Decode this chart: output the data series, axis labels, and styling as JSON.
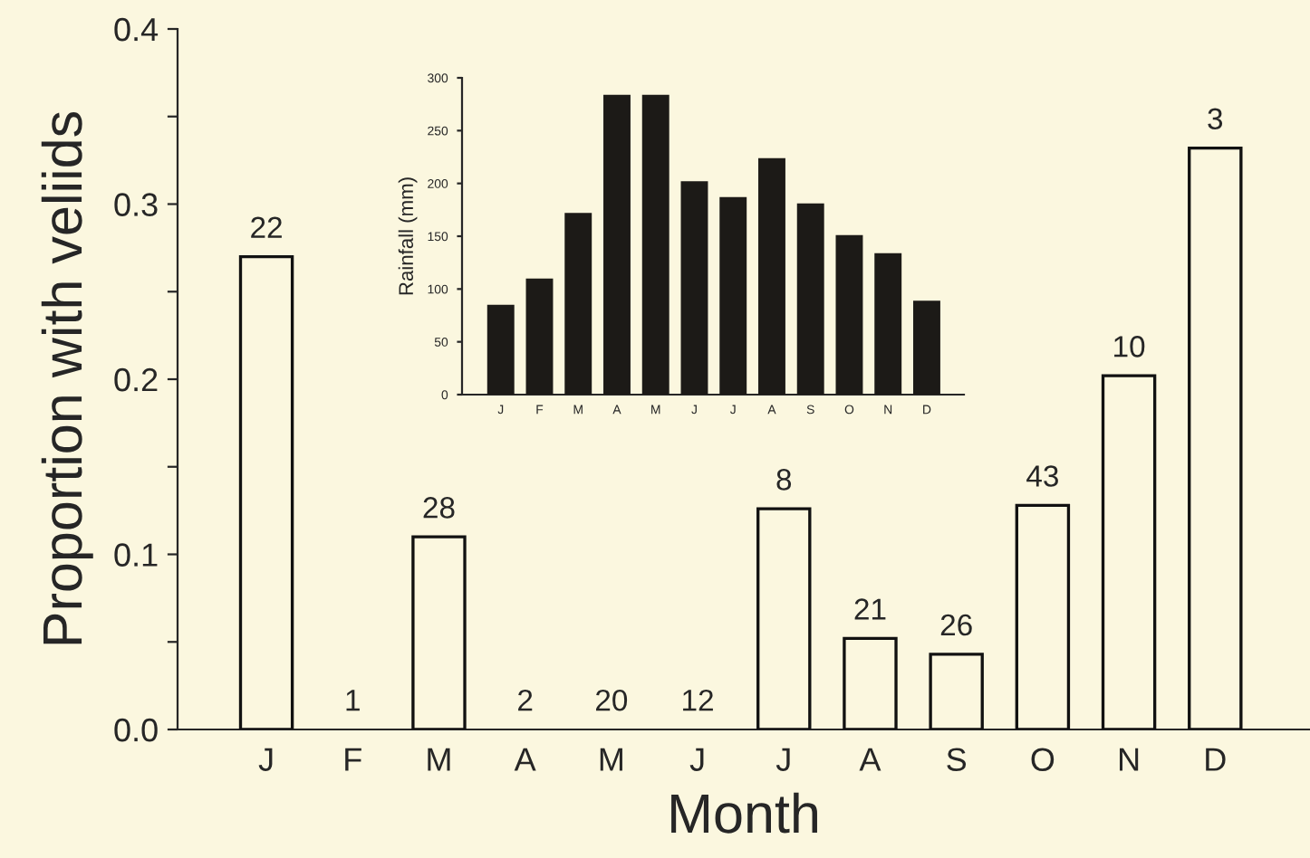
{
  "chart_data": [
    {
      "type": "bar",
      "xlabel": "Month",
      "ylabel": "Proportion with veliids",
      "categories": [
        "J",
        "F",
        "M",
        "A",
        "M",
        "J",
        "J",
        "A",
        "S",
        "O",
        "N",
        "D"
      ],
      "series": [
        {
          "color": "#fbf7df",
          "values": [
            0.27,
            0,
            0.11,
            0,
            0,
            0,
            0.126,
            0.052,
            0.043,
            0.128,
            0.202,
            0.332
          ]
        }
      ],
      "annotations": [
        "22",
        "1",
        "28",
        "2",
        "20",
        "12",
        "8",
        "21",
        "26",
        "43",
        "10",
        "3"
      ],
      "ylim": [
        0,
        0.4
      ],
      "yticks": [
        {
          "value": 0,
          "label": "0.0"
        },
        {
          "value": 0.05,
          "label": null
        },
        {
          "value": 0.1,
          "label": "0.1"
        },
        {
          "value": 0.15,
          "label": null
        },
        {
          "value": 0.2,
          "label": "0.2"
        },
        {
          "value": 0.25,
          "label": null
        },
        {
          "value": 0.3,
          "label": "0.3"
        },
        {
          "value": 0.35,
          "label": null
        },
        {
          "value": 0.4,
          "label": "0.4"
        }
      ],
      "grid": false,
      "legend": false
    },
    {
      "type": "bar",
      "ylabel": "Rainfall (mm)",
      "categories": [
        "J",
        "F",
        "M",
        "A",
        "M",
        "J",
        "J",
        "A",
        "S",
        "O",
        "N",
        "D"
      ],
      "series": [
        {
          "color": "#1c1a17",
          "values": [
            85,
            110,
            172,
            284,
            284,
            202,
            187,
            224,
            181,
            151,
            134,
            89
          ]
        }
      ],
      "ylim": [
        0,
        300
      ],
      "yticks": [
        0,
        50,
        100,
        150,
        200,
        250,
        300
      ],
      "grid": false,
      "legend": false
    }
  ]
}
